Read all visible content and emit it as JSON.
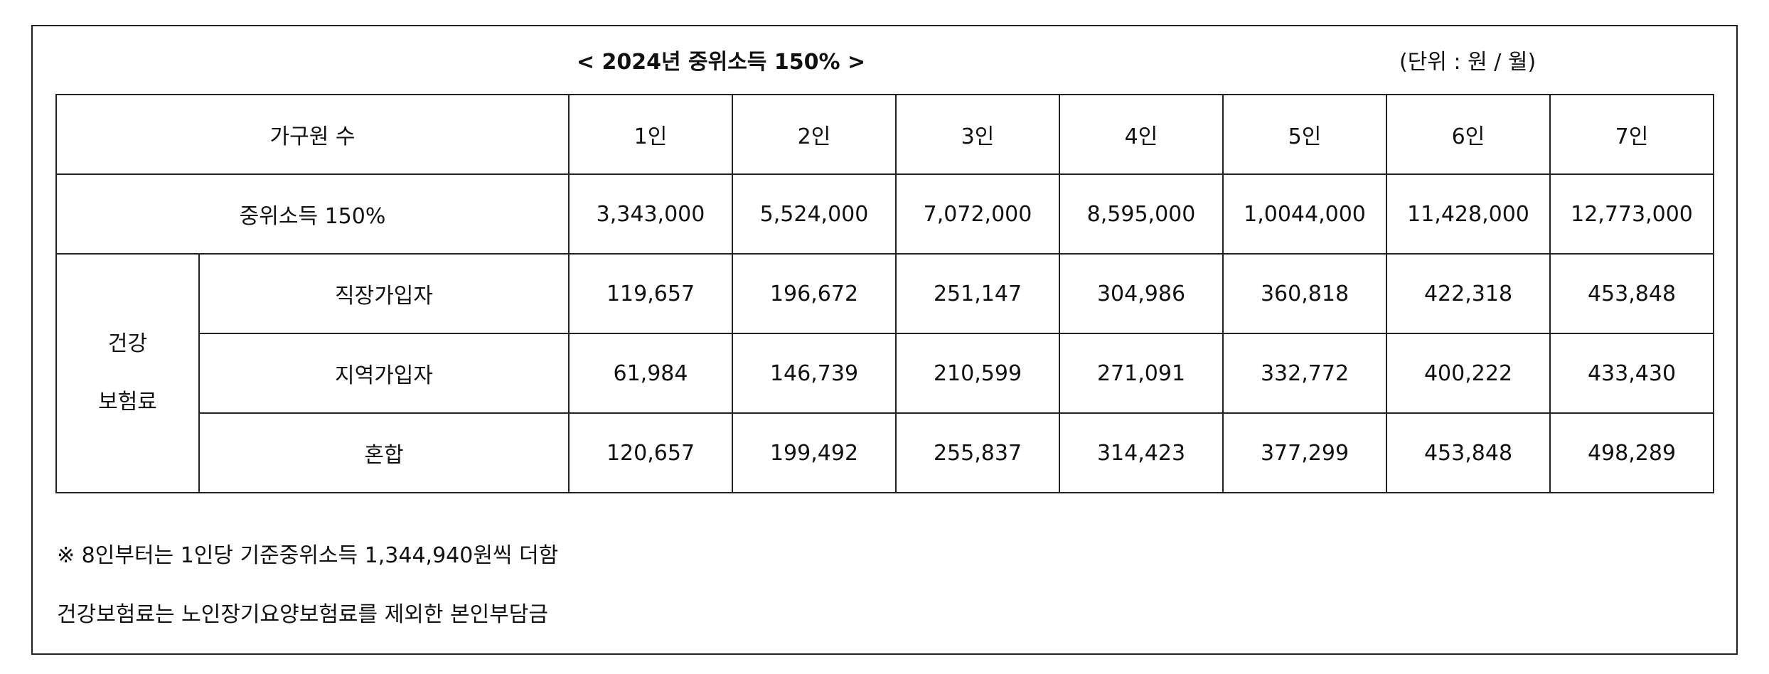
{
  "title": "< 2024년 중위소득 150% >",
  "unit": "(단위 : 원 / 월)",
  "table": {
    "header": {
      "label": "가구원 수",
      "columns": [
        "1인",
        "2인",
        "3인",
        "4인",
        "5인",
        "6인",
        "7인"
      ]
    },
    "median_income": {
      "label": "중위소득 150%",
      "values": [
        "3,343,000",
        "5,524,000",
        "7,072,000",
        "8,595,000",
        "1,0044,000",
        "11,428,000",
        "12,773,000"
      ]
    },
    "insurance": {
      "label_line1": "건강",
      "label_line2": "보험료",
      "rows": [
        {
          "label": "직장가입자",
          "values": [
            "119,657",
            "196,672",
            "251,147",
            "304,986",
            "360,818",
            "422,318",
            "453,848"
          ]
        },
        {
          "label": "지역가입자",
          "values": [
            "61,984",
            "146,739",
            "210,599",
            "271,091",
            "332,772",
            "400,222",
            "433,430"
          ]
        },
        {
          "label": "혼합",
          "values": [
            "120,657",
            "199,492",
            "255,837",
            "314,423",
            "377,299",
            "453,848",
            "498,289"
          ]
        }
      ]
    }
  },
  "notes": {
    "note1": "※ 8인부터는 1인당 기준중위소득 1,344,940원씩 더함",
    "note2": "건강보험료는 노인장기요양보험료를 제외한 본인부담금"
  }
}
